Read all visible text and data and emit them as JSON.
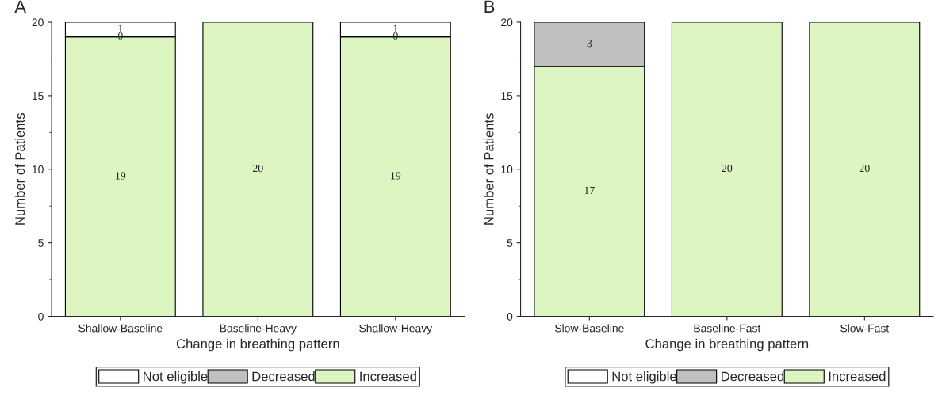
{
  "chart_data": [
    {
      "type": "bar",
      "title": "A",
      "xlabel": "Change in breathing pattern",
      "ylabel": "Number of Patients",
      "categories": [
        "Shallow-Baseline",
        "Baseline-Heavy",
        "Shallow-Heavy"
      ],
      "stacked": true,
      "ylim": [
        0,
        20
      ],
      "yticks": [
        0,
        5,
        10,
        15,
        20
      ],
      "grid": false,
      "legend": "bottom",
      "series": [
        {
          "name": "Increased",
          "color": "#ddf5c0",
          "values": [
            19,
            20,
            19
          ],
          "value_labels": [
            "19",
            "20",
            "19"
          ]
        },
        {
          "name": "Decreased",
          "color": "#c0c0c0",
          "values": [
            0,
            0,
            0
          ],
          "value_labels": [
            "0",
            null,
            "0"
          ]
        },
        {
          "name": "Not eligible",
          "color": "#ffffff",
          "values": [
            1,
            0,
            1
          ],
          "value_labels": [
            "1",
            null,
            "1"
          ]
        }
      ]
    },
    {
      "type": "bar",
      "title": "B",
      "xlabel": "Change in breathing pattern",
      "ylabel": "Number of Patients",
      "categories": [
        "Slow-Baseline",
        "Baseline-Fast",
        "Slow-Fast"
      ],
      "stacked": true,
      "ylim": [
        0,
        20
      ],
      "yticks": [
        0,
        5,
        10,
        15,
        20
      ],
      "grid": false,
      "legend": "bottom",
      "series": [
        {
          "name": "Increased",
          "color": "#ddf5c0",
          "values": [
            17,
            20,
            20
          ],
          "value_labels": [
            "17",
            "20",
            "20"
          ]
        },
        {
          "name": "Decreased",
          "color": "#c0c0c0",
          "values": [
            3,
            0,
            0
          ],
          "value_labels": [
            "3",
            null,
            null
          ]
        },
        {
          "name": "Not eligible",
          "color": "#ffffff",
          "values": [
            0,
            0,
            0
          ],
          "value_labels": [
            null,
            null,
            null
          ]
        }
      ]
    }
  ]
}
